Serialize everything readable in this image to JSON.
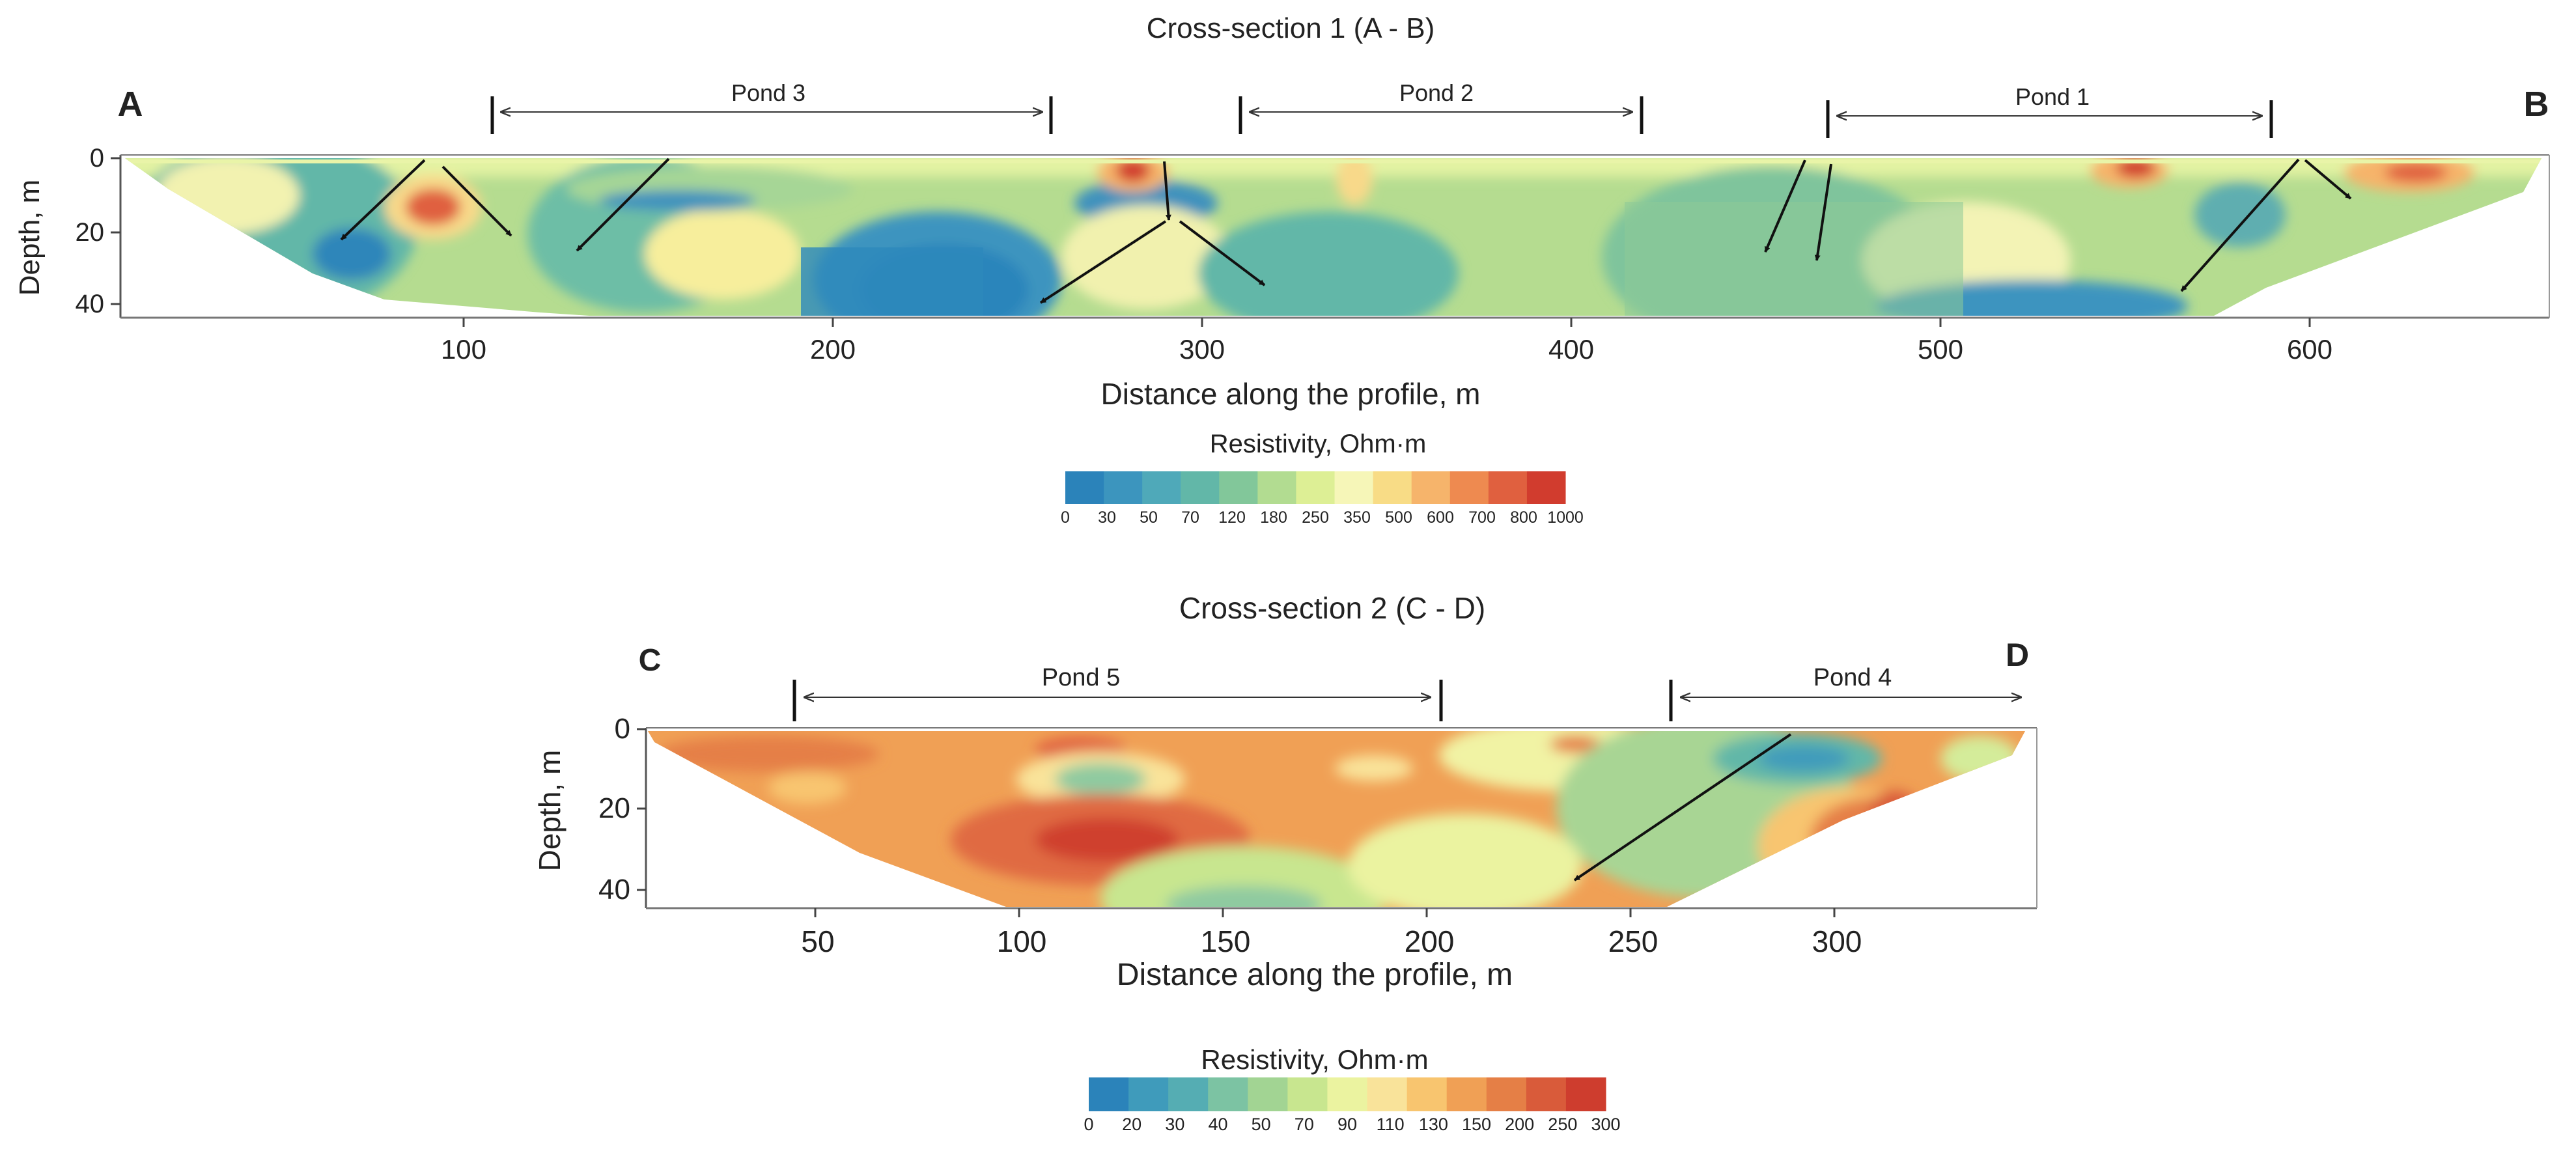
{
  "chart_data": [
    {
      "type": "heatmap",
      "title": "Cross-section 1 (A - B)",
      "xlabel": "Distance along the profile, m",
      "ylabel": "Depth, m",
      "xlim": [
        10,
        665
      ],
      "ylim": [
        0,
        44
      ],
      "x_ticks": [
        "100",
        "200",
        "300",
        "400",
        "500",
        "600"
      ],
      "x_tick_values": [
        100,
        200,
        300,
        400,
        500,
        600
      ],
      "y_ticks": [
        "0",
        "20",
        "40"
      ],
      "y_tick_values": [
        0,
        20,
        40
      ],
      "end_labels": {
        "left": "A",
        "right": "B"
      },
      "ponds": [
        {
          "name": "Pond 3",
          "from": 111,
          "to": 261
        },
        {
          "name": "Pond 2",
          "from": 312,
          "to": 420
        },
        {
          "name": "Pond 1",
          "from": 471,
          "to": 592
        }
      ],
      "legend": {
        "title": "Resistivity, Ohm·m",
        "ticks": [
          "0",
          "30",
          "50",
          "70",
          "120",
          "180",
          "250",
          "350",
          "500",
          "600",
          "700",
          "800",
          "1000"
        ],
        "colors": [
          "#2b83ba",
          "#3c95be",
          "#4fa9b9",
          "#62b7a8",
          "#82c79a",
          "#b2dc91",
          "#ddef95",
          "#f6f6b8",
          "#f8dc86",
          "#f6b46b",
          "#ee8a50",
          "#e0603f",
          "#d13c2e"
        ]
      },
      "arrows": [
        {
          "from": [
            92,
            2
          ],
          "to": [
            68,
            24
          ]
        },
        {
          "from": [
            93,
            2
          ],
          "to": [
            113,
            22
          ]
        },
        {
          "from": [
            158,
            1
          ],
          "to": [
            131,
            26
          ]
        },
        {
          "from": [
            289,
            3
          ],
          "to": [
            290,
            18
          ]
        },
        {
          "from": [
            289,
            18
          ],
          "to": [
            259,
            38
          ]
        },
        {
          "from": [
            289,
            18
          ],
          "to": [
            315,
            34
          ]
        },
        {
          "from": [
            467,
            1
          ],
          "to": [
            452,
            26
          ]
        },
        {
          "from": [
            469,
            1
          ],
          "to": [
            465,
            28
          ]
        },
        {
          "from": [
            601,
            0
          ],
          "to": [
            564,
            35
          ]
        },
        {
          "from": [
            601,
            0
          ],
          "to": [
            613,
            11
          ]
        }
      ]
    },
    {
      "type": "heatmap",
      "title": "Cross-section 2 (C - D)",
      "xlabel": "Distance along the profile, m",
      "ylabel": "Depth, m",
      "xlim": [
        7,
        348
      ],
      "ylim": [
        0,
        45
      ],
      "x_ticks": [
        "50",
        "100",
        "150",
        "200",
        "250",
        "300"
      ],
      "x_tick_values": [
        50,
        100,
        150,
        200,
        250,
        300
      ],
      "y_ticks": [
        "0",
        "20",
        "40"
      ],
      "y_tick_values": [
        0,
        20,
        40
      ],
      "end_labels": {
        "left": "C",
        "right": "D"
      },
      "ponds": [
        {
          "name": "Pond 5",
          "from": 44,
          "to": 204
        },
        {
          "name": "Pond 4",
          "from": 261,
          "to": 348
        }
      ],
      "legend": {
        "title": "Resistivity, Ohm·m",
        "ticks": [
          "0",
          "20",
          "30",
          "40",
          "50",
          "70",
          "90",
          "110",
          "130",
          "150",
          "200",
          "250",
          "300"
        ],
        "colors": [
          "#2b83ba",
          "#3f9bbb",
          "#55adb3",
          "#7cc3a3",
          "#a2d493",
          "#c8e68f",
          "#ebf3a0",
          "#f9e39a",
          "#f8c56f",
          "#f0a055",
          "#e57f46",
          "#d95b3a",
          "#ce3d2e"
        ]
      },
      "arrows": [
        {
          "from": [
            289,
            2
          ],
          "to": [
            236,
            38
          ]
        }
      ]
    }
  ]
}
